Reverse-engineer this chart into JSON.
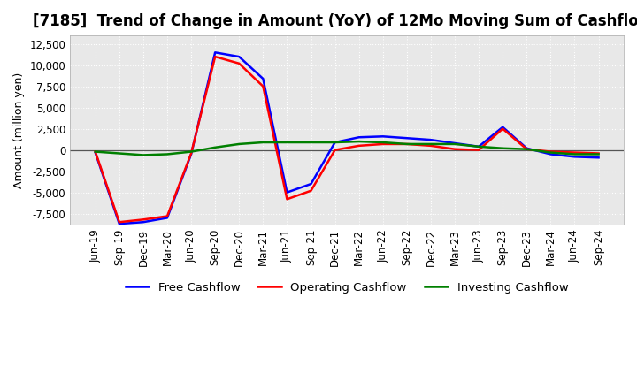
{
  "title": "[7185]  Trend of Change in Amount (YoY) of 12Mo Moving Sum of Cashflows",
  "ylabel": "Amount (million yen)",
  "ylim": [
    -8800,
    13500
  ],
  "yticks": [
    -7500,
    -5000,
    -2500,
    0,
    2500,
    5000,
    7500,
    10000,
    12500
  ],
  "dates": [
    "Jun-19",
    "Sep-19",
    "Dec-19",
    "Mar-20",
    "Jun-20",
    "Sep-20",
    "Dec-20",
    "Mar-21",
    "Jun-21",
    "Sep-21",
    "Dec-21",
    "Mar-22",
    "Jun-22",
    "Sep-22",
    "Dec-22",
    "Mar-23",
    "Jun-23",
    "Sep-23",
    "Dec-23",
    "Mar-24",
    "Jun-24",
    "Sep-24"
  ],
  "operating": [
    -200,
    -8500,
    -8200,
    -7800,
    -400,
    11000,
    10200,
    7500,
    -5800,
    -4800,
    0,
    500,
    700,
    700,
    500,
    100,
    0,
    2500,
    100,
    -200,
    -300,
    -400
  ],
  "investing": [
    -200,
    -400,
    -600,
    -500,
    -200,
    300,
    700,
    900,
    900,
    900,
    900,
    1000,
    900,
    700,
    700,
    700,
    400,
    200,
    100,
    -300,
    -500,
    -500
  ],
  "free": [
    -300,
    -8700,
    -8500,
    -8000,
    -500,
    11500,
    11000,
    8400,
    -5000,
    -4000,
    900,
    1500,
    1600,
    1400,
    1200,
    800,
    400,
    2700,
    200,
    -500,
    -800,
    -900
  ],
  "operating_color": "#ff0000",
  "investing_color": "#008000",
  "free_color": "#0000ff",
  "background_color": "#ffffff",
  "plot_bg_color": "#e8e8e8",
  "grid_color": "#ffffff",
  "title_fontsize": 12,
  "axis_fontsize": 9,
  "tick_fontsize": 8.5,
  "legend_fontsize": 9.5
}
